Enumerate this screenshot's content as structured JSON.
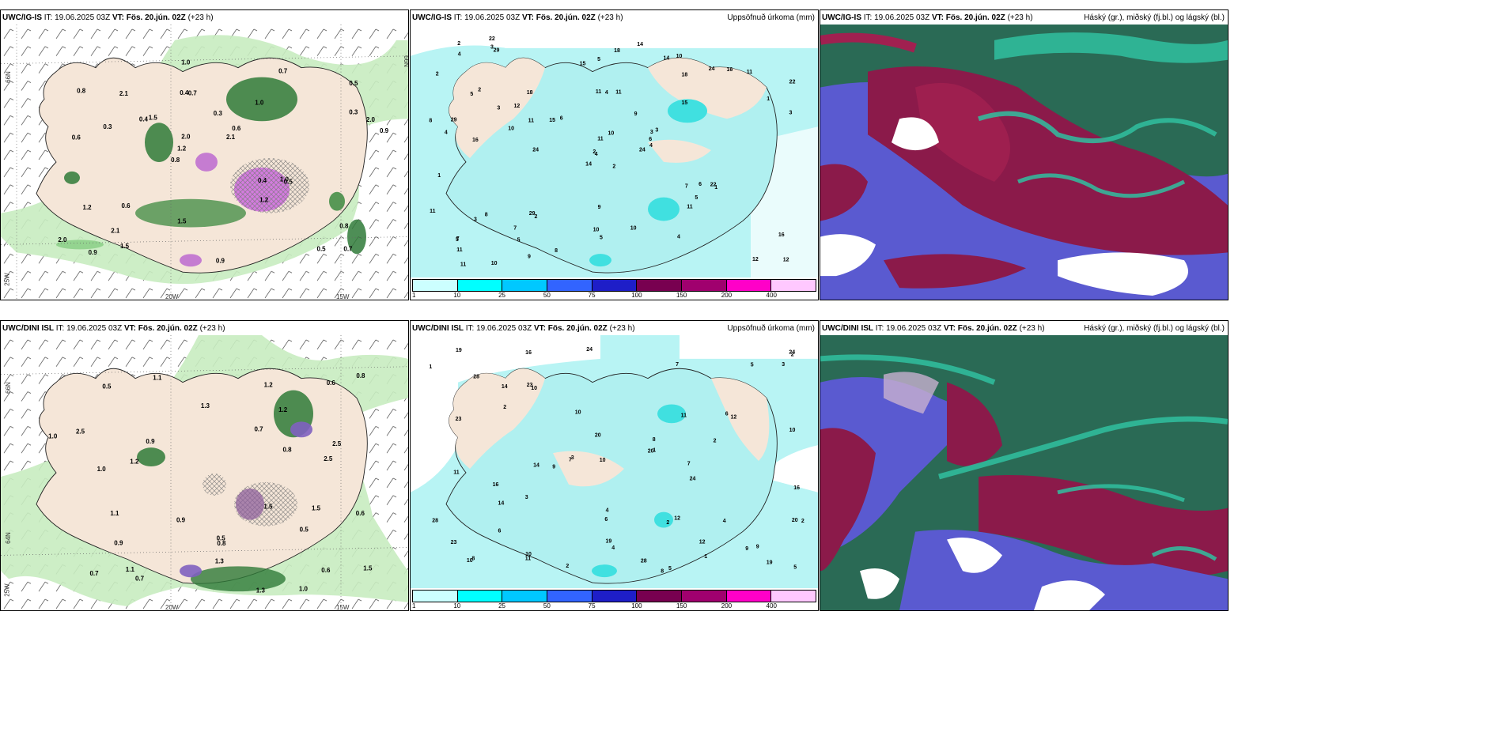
{
  "panels": [
    {
      "model": "UWC/IG-IS",
      "it_label": "IT:",
      "it_value": "19.06.2025 03Z",
      "vt_label": "VT:",
      "vt_value": "Fös. 20.jún. 02Z",
      "lead": "(+23 h)",
      "right": ""
    },
    {
      "model": "UWC/IG-IS",
      "it_label": "IT:",
      "it_value": "19.06.2025 03Z",
      "vt_label": "VT:",
      "vt_value": "Fös. 20.jún. 02Z",
      "lead": "(+23 h)",
      "right": "Uppsöfnuð úrkoma (mm)"
    },
    {
      "model": "UWC/IG-IS",
      "it_label": "IT:",
      "it_value": "19.06.2025 03Z",
      "vt_label": "VT:",
      "vt_value": "Fös. 20.jún. 02Z",
      "lead": "(+23 h)",
      "right": "Háský (gr.), miðský (fj.bl.) og lágský (bl.)"
    },
    {
      "model": "UWC/DINI ISL",
      "it_label": "IT:",
      "it_value": "19.06.2025 03Z",
      "vt_label": "VT:",
      "vt_value": "Fös. 20.jún. 02Z",
      "lead": "(+23 h)",
      "right": ""
    },
    {
      "model": "UWC/DINI ISL",
      "it_label": "IT:",
      "it_value": "19.06.2025 03Z",
      "vt_label": "VT:",
      "vt_value": "Fös. 20.jún. 02Z",
      "lead": "(+23 h)",
      "right": "Uppsöfnuð úrkoma (mm)"
    },
    {
      "model": "UWC/DINI ISL",
      "it_label": "IT:",
      "it_value": "19.06.2025 03Z",
      "vt_label": "VT:",
      "vt_value": "Fös. 20.jún. 02Z",
      "lead": "(+23 h)",
      "right": "Háský (gr.), miðský (fj.bl.) og lágský (bl.)"
    }
  ],
  "gridlabels": {
    "lat66": "66N",
    "lat64": "64N",
    "lon20": "20W",
    "lon15": "15W",
    "lon25": "25W"
  },
  "colorbar": {
    "colors": [
      "#ccffff",
      "#00ffff",
      "#00c8ff",
      "#3264ff",
      "#1e1ec8",
      "#780050",
      "#a0006e",
      "#ff00c8",
      "#ffc8ff"
    ],
    "ticks": [
      "1",
      "10",
      "25",
      "50",
      "75",
      "100",
      "150",
      "200",
      "400"
    ]
  },
  "colors": {
    "land": "#f5e6d8",
    "green_light": "#b8e8b0",
    "green_mid": "#60b060",
    "green_dark": "#1f6b2a",
    "purple": "#c060d0",
    "cyan_fill": "#b0f5f5",
    "cloud_blue": "#6060d0",
    "cloud_red": "#8b1a4a",
    "cloud_green": "#2a6a50",
    "cloud_teal": "#30c0a0"
  },
  "precip_labels_top": [
    "2",
    "5",
    "4",
    "7",
    "3",
    "2",
    "10",
    "11",
    "18",
    "24",
    "29",
    "12",
    "16",
    "22",
    "14",
    "15",
    "10",
    "11",
    "9",
    "8",
    "6",
    "11",
    "5",
    "4",
    "3",
    "1"
  ],
  "precip_labels_bottom": [
    "2",
    "8",
    "10",
    "12",
    "16",
    "28",
    "14",
    "19",
    "24",
    "10",
    "5",
    "4",
    "3",
    "6",
    "7",
    "20",
    "23",
    "11",
    "9",
    "1",
    "2"
  ],
  "value_labels_left_top": [
    "0.7",
    "0.6",
    "0.5",
    "0.8",
    "1.0",
    "0.9",
    "0.4",
    "0.3",
    "1.2",
    "1.5",
    "2.0",
    "2.1"
  ],
  "value_labels_left_bottom": [
    "0.6",
    "1.0",
    "0.8",
    "0.7",
    "0.5",
    "0.9",
    "1.1",
    "1.2",
    "1.3",
    "2.5",
    "1.5"
  ]
}
